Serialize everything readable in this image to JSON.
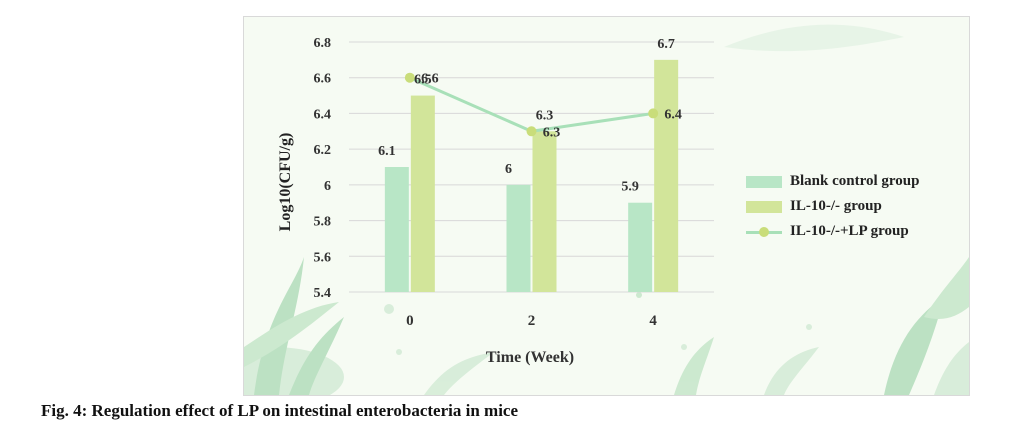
{
  "caption": "Fig. 4: Regulation effect of LP on intestinal enterobacteria in mice",
  "colors": {
    "blank": "#b8e6c6",
    "il10": "#d2e59a",
    "lp_line": "#a8e0b8",
    "lp_marker": "#c9dd7a",
    "grid": "#d8d8d8",
    "leaf_dark": "#a9d9b4",
    "leaf_light": "#cfe9d2"
  },
  "chart_data": {
    "type": "bar",
    "title": "",
    "xlabel": "Time (Week)",
    "ylabel": "Log10(CFU/g)",
    "categories": [
      "0",
      "2",
      "4"
    ],
    "ylim": [
      5.4,
      6.8
    ],
    "yticks": [
      "5.4",
      "5.6",
      "5.8",
      "6",
      "6.2",
      "6.4",
      "6.6",
      "6.8"
    ],
    "grid": true,
    "legend_position": "right",
    "series": [
      {
        "name": "Blank control group",
        "type": "bar",
        "values": [
          6.1,
          6.0,
          5.9
        ],
        "labels": [
          "6.1",
          "6",
          "5.9"
        ]
      },
      {
        "name": "IL-10-/- group",
        "type": "bar",
        "values": [
          6.5,
          6.3,
          6.7
        ],
        "labels": [
          "6.5",
          "6.3",
          "6.7"
        ]
      },
      {
        "name": "IL-10-/-+LP group",
        "type": "line",
        "values": [
          6.6,
          6.3,
          6.4
        ],
        "labels": [
          "6.6",
          "6.3",
          "6.4"
        ]
      }
    ]
  }
}
